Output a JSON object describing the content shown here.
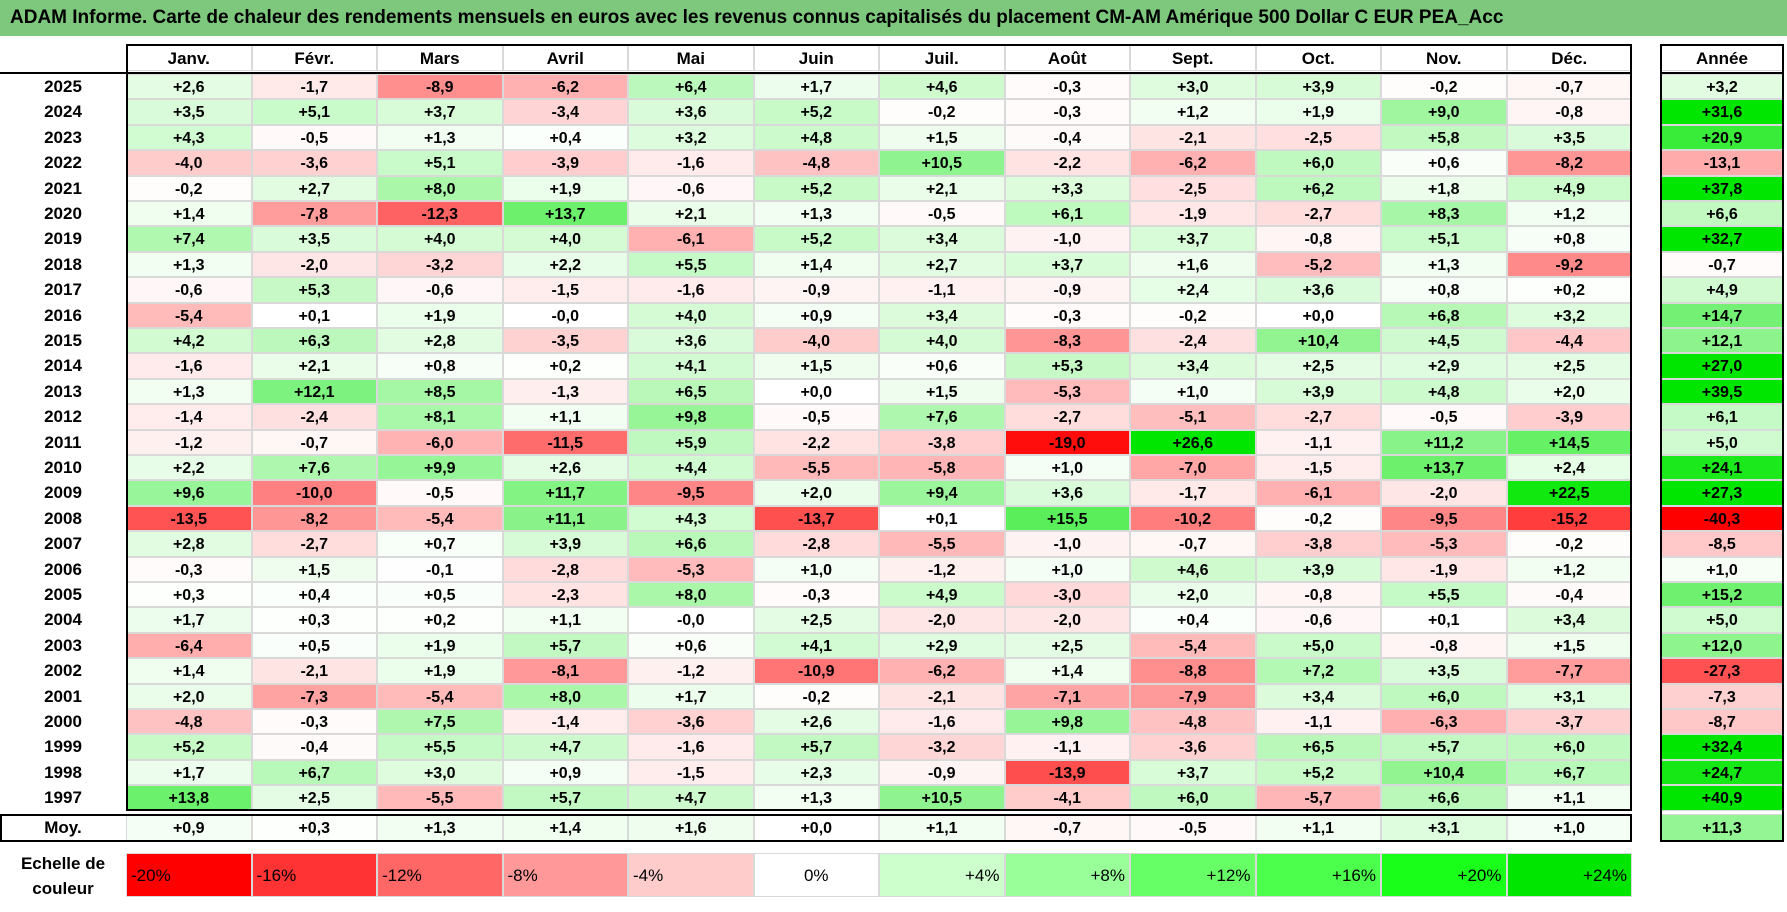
{
  "title": "ADAM Informe. Carte de chaleur des rendements mensuels en euros avec les revenus connus capitalisés du placement CM-AM Amérique 500 Dollar C EUR PEA_Acc",
  "chart_data": {
    "type": "heatmap",
    "title": "ADAM Informe. Carte de chaleur des rendements mensuels en euros avec les revenus connus capitalisés du placement CM-AM Amérique 500 Dollar C EUR PEA_Acc",
    "months": [
      "Janv.",
      "Févr.",
      "Mars",
      "Avril",
      "Mai",
      "Juin",
      "Juil.",
      "Août",
      "Sept.",
      "Oct.",
      "Nov.",
      "Déc."
    ],
    "year_header": "Année",
    "rows": [
      {
        "year": "2025",
        "values": [
          "+2,6",
          "-1,7",
          "-8,9",
          "-6,2",
          "+6,4",
          "+1,7",
          "+4,6",
          "-0,3",
          "+3,0",
          "+3,9",
          "-0,2",
          "-0,7"
        ],
        "annual": "+3,2"
      },
      {
        "year": "2024",
        "values": [
          "+3,5",
          "+5,1",
          "+3,7",
          "-3,4",
          "+3,6",
          "+5,2",
          "-0,2",
          "-0,3",
          "+1,2",
          "+1,9",
          "+9,0",
          "-0,8"
        ],
        "annual": "+31,6"
      },
      {
        "year": "2023",
        "values": [
          "+4,3",
          "-0,5",
          "+1,3",
          "+0,4",
          "+3,2",
          "+4,8",
          "+1,5",
          "-0,4",
          "-2,1",
          "-2,5",
          "+5,8",
          "+3,5"
        ],
        "annual": "+20,9"
      },
      {
        "year": "2022",
        "values": [
          "-4,0",
          "-3,6",
          "+5,1",
          "-3,9",
          "-1,6",
          "-4,8",
          "+10,5",
          "-2,2",
          "-6,2",
          "+6,0",
          "+0,6",
          "-8,2"
        ],
        "annual": "-13,1"
      },
      {
        "year": "2021",
        "values": [
          "-0,2",
          "+2,7",
          "+8,0",
          "+1,9",
          "-0,6",
          "+5,2",
          "+2,1",
          "+3,3",
          "-2,5",
          "+6,2",
          "+1,8",
          "+4,9"
        ],
        "annual": "+37,8"
      },
      {
        "year": "2020",
        "values": [
          "+1,4",
          "-7,8",
          "-12,3",
          "+13,7",
          "+2,1",
          "+1,3",
          "-0,5",
          "+6,1",
          "-1,9",
          "-2,7",
          "+8,3",
          "+1,2"
        ],
        "annual": "+6,6"
      },
      {
        "year": "2019",
        "values": [
          "+7,4",
          "+3,5",
          "+4,0",
          "+4,0",
          "-6,1",
          "+5,2",
          "+3,4",
          "-1,0",
          "+3,7",
          "-0,8",
          "+5,1",
          "+0,8"
        ],
        "annual": "+32,7"
      },
      {
        "year": "2018",
        "values": [
          "+1,3",
          "-2,0",
          "-3,2",
          "+2,2",
          "+5,5",
          "+1,4",
          "+2,7",
          "+3,7",
          "+1,6",
          "-5,2",
          "+1,3",
          "-9,2"
        ],
        "annual": "-0,7"
      },
      {
        "year": "2017",
        "values": [
          "-0,6",
          "+5,3",
          "-0,6",
          "-1,5",
          "-1,6",
          "-0,9",
          "-1,1",
          "-0,9",
          "+2,4",
          "+3,6",
          "+0,8",
          "+0,2"
        ],
        "annual": "+4,9"
      },
      {
        "year": "2016",
        "values": [
          "-5,4",
          "+0,1",
          "+1,9",
          "-0,0",
          "+4,0",
          "+0,9",
          "+3,4",
          "-0,3",
          "-0,2",
          "+0,0",
          "+6,8",
          "+3,2"
        ],
        "annual": "+14,7"
      },
      {
        "year": "2015",
        "values": [
          "+4,2",
          "+6,3",
          "+2,8",
          "-3,5",
          "+3,6",
          "-4,0",
          "+4,0",
          "-8,3",
          "-2,4",
          "+10,4",
          "+4,5",
          "-4,4"
        ],
        "annual": "+12,1"
      },
      {
        "year": "2014",
        "values": [
          "-1,6",
          "+2,1",
          "+0,8",
          "+0,2",
          "+4,1",
          "+1,5",
          "+0,6",
          "+5,3",
          "+3,4",
          "+2,5",
          "+2,9",
          "+2,5"
        ],
        "annual": "+27,0"
      },
      {
        "year": "2013",
        "values": [
          "+1,3",
          "+12,1",
          "+8,5",
          "-1,3",
          "+6,5",
          "+0,0",
          "+1,5",
          "-5,3",
          "+1,0",
          "+3,9",
          "+4,8",
          "+2,0"
        ],
        "annual": "+39,5"
      },
      {
        "year": "2012",
        "values": [
          "-1,4",
          "-2,4",
          "+8,1",
          "+1,1",
          "+9,8",
          "-0,5",
          "+7,6",
          "-2,7",
          "-5,1",
          "-2,7",
          "-0,5",
          "-3,9"
        ],
        "annual": "+6,1"
      },
      {
        "year": "2011",
        "values": [
          "-1,2",
          "-0,7",
          "-6,0",
          "-11,5",
          "+5,9",
          "-2,2",
          "-3,8",
          "-19,0",
          "+26,6",
          "-1,1",
          "+11,2",
          "+14,5"
        ],
        "annual": "+5,0"
      },
      {
        "year": "2010",
        "values": [
          "+2,2",
          "+7,6",
          "+9,9",
          "+2,6",
          "+4,4",
          "-5,5",
          "-5,8",
          "+1,0",
          "-7,0",
          "-1,5",
          "+13,7",
          "+2,4"
        ],
        "annual": "+24,1"
      },
      {
        "year": "2009",
        "values": [
          "+9,6",
          "-10,0",
          "-0,5",
          "+11,7",
          "-9,5",
          "+2,0",
          "+9,4",
          "+3,6",
          "-1,7",
          "-6,1",
          "-2,0",
          "+22,5"
        ],
        "annual": "+27,3"
      },
      {
        "year": "2008",
        "values": [
          "-13,5",
          "-8,2",
          "-5,4",
          "+11,1",
          "+4,3",
          "-13,7",
          "+0,1",
          "+15,5",
          "-10,2",
          "-0,2",
          "-9,5",
          "-15,2"
        ],
        "annual": "-40,3"
      },
      {
        "year": "2007",
        "values": [
          "+2,8",
          "-2,7",
          "+0,7",
          "+3,9",
          "+6,6",
          "-2,8",
          "-5,5",
          "-1,0",
          "-0,7",
          "-3,8",
          "-5,3",
          "-0,2"
        ],
        "annual": "-8,5"
      },
      {
        "year": "2006",
        "values": [
          "-0,3",
          "+1,5",
          "-0,1",
          "-2,8",
          "-5,3",
          "+1,0",
          "-1,2",
          "+1,0",
          "+4,6",
          "+3,9",
          "-1,9",
          "+1,2"
        ],
        "annual": "+1,0"
      },
      {
        "year": "2005",
        "values": [
          "+0,3",
          "+0,4",
          "+0,5",
          "-2,3",
          "+8,0",
          "-0,3",
          "+4,9",
          "-3,0",
          "+2,0",
          "-0,8",
          "+5,5",
          "-0,4"
        ],
        "annual": "+15,2"
      },
      {
        "year": "2004",
        "values": [
          "+1,7",
          "+0,3",
          "+0,2",
          "+1,1",
          "-0,0",
          "+2,5",
          "-2,0",
          "-2,0",
          "+0,4",
          "-0,6",
          "+0,1",
          "+3,4"
        ],
        "annual": "+5,0"
      },
      {
        "year": "2003",
        "values": [
          "-6,4",
          "+0,5",
          "+1,9",
          "+5,7",
          "+0,6",
          "+4,1",
          "+2,9",
          "+2,5",
          "-5,4",
          "+5,0",
          "-0,8",
          "+1,5"
        ],
        "annual": "+12,0"
      },
      {
        "year": "2002",
        "values": [
          "+1,4",
          "-2,1",
          "+1,9",
          "-8,1",
          "-1,2",
          "-10,9",
          "-6,2",
          "+1,4",
          "-8,8",
          "+7,2",
          "+3,5",
          "-7,7"
        ],
        "annual": "-27,3"
      },
      {
        "year": "2001",
        "values": [
          "+2,0",
          "-7,3",
          "-5,4",
          "+8,0",
          "+1,7",
          "-0,2",
          "-2,1",
          "-7,1",
          "-7,9",
          "+3,4",
          "+6,0",
          "+3,1"
        ],
        "annual": "-7,3"
      },
      {
        "year": "2000",
        "values": [
          "-4,8",
          "-0,3",
          "+7,5",
          "-1,4",
          "-3,6",
          "+2,6",
          "-1,6",
          "+9,8",
          "-4,8",
          "-1,1",
          "-6,3",
          "-3,7"
        ],
        "annual": "-8,7"
      },
      {
        "year": "1999",
        "values": [
          "+5,2",
          "-0,4",
          "+5,5",
          "+4,7",
          "-1,6",
          "+5,7",
          "-3,2",
          "-1,1",
          "-3,6",
          "+6,5",
          "+5,7",
          "+6,0"
        ],
        "annual": "+32,4"
      },
      {
        "year": "1998",
        "values": [
          "+1,7",
          "+6,7",
          "+3,0",
          "+0,9",
          "-1,5",
          "+2,3",
          "-0,9",
          "-13,9",
          "+3,7",
          "+5,2",
          "+10,4",
          "+6,7"
        ],
        "annual": "+24,7"
      },
      {
        "year": "1997",
        "values": [
          "+13,8",
          "+2,5",
          "-5,5",
          "+5,7",
          "+4,7",
          "+1,3",
          "+10,5",
          "-4,1",
          "+6,0",
          "-5,7",
          "+6,6",
          "+1,1"
        ],
        "annual": "+40,9"
      }
    ],
    "average": {
      "label": "Moy.",
      "values": [
        "+0,9",
        "+0,3",
        "+1,3",
        "+1,4",
        "+1,6",
        "+0,0",
        "+1,1",
        "-0,7",
        "-0,5",
        "+1,1",
        "+3,1",
        "+1,0"
      ],
      "annual": "+11,3"
    },
    "color_scale": {
      "label": "Echelle de couleur",
      "steps": [
        {
          "label": "-20%",
          "value": -20,
          "color": "#ff0000"
        },
        {
          "label": "-16%",
          "value": -16,
          "color": "#ff3333"
        },
        {
          "label": "-12%",
          "value": -12,
          "color": "#ff6666"
        },
        {
          "label": "-8%",
          "value": -8,
          "color": "#ff9999"
        },
        {
          "label": "-4%",
          "value": -4,
          "color": "#ffcccc"
        },
        {
          "label": "0%",
          "value": 0,
          "color": "#ffffff"
        },
        {
          "label": "+4%",
          "value": 4,
          "color": "#ccffcc"
        },
        {
          "label": "+8%",
          "value": 8,
          "color": "#99ff99"
        },
        {
          "label": "+12%",
          "value": 12,
          "color": "#66ff66"
        },
        {
          "label": "+16%",
          "value": 16,
          "color": "#4dff4d"
        },
        {
          "label": "+20%",
          "value": 20,
          "color": "#1aff1a"
        },
        {
          "label": "+24%",
          "value": 24,
          "color": "#00e600"
        }
      ]
    }
  },
  "colors": {
    "title_bg": "#7dc87d",
    "negative_max": "#ff0000",
    "positive_max": "#00e600"
  }
}
